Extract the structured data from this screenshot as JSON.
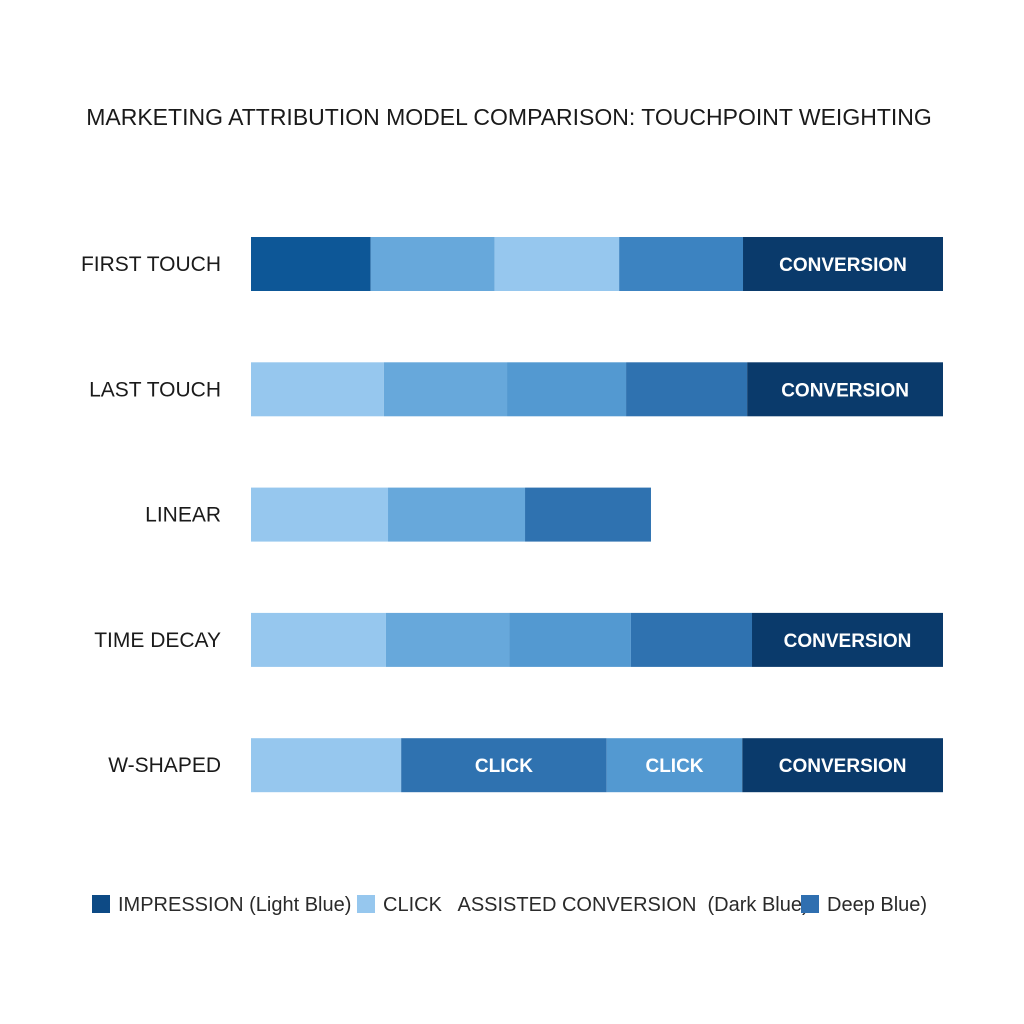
{
  "chart_data": {
    "type": "bar",
    "stacked": true,
    "orientation": "horizontal",
    "title": "MARKETING ATTRIBUTION MODEL COMPARISON: TOUCHPOINT WEIGHTING",
    "xlabel": "",
    "ylabel": "",
    "grid": false,
    "legend_position": "bottom",
    "categories": [
      "FIRST TOUCH",
      "LAST TOUCH",
      "LINEAR",
      "TIME DECAY",
      "W-SHAPED"
    ],
    "rows": [
      {
        "label": "FIRST TOUCH",
        "segments": [
          {
            "value": 17.3,
            "color": "#0d5797",
            "label": ""
          },
          {
            "value": 17.9,
            "color": "#67a8db",
            "label": ""
          },
          {
            "value": 18.0,
            "color": "#96c7ee",
            "label": ""
          },
          {
            "value": 17.9,
            "color": "#3c83c1",
            "label": ""
          },
          {
            "value": 28.9,
            "color": "#0a3a6b",
            "label": "CONVERSION"
          }
        ]
      },
      {
        "label": "LAST TOUCH",
        "segments": [
          {
            "value": 19.2,
            "color": "#96c7ee",
            "label": ""
          },
          {
            "value": 17.8,
            "color": "#67a8db",
            "label": ""
          },
          {
            "value": 17.2,
            "color": "#5399d1",
            "label": ""
          },
          {
            "value": 17.5,
            "color": "#2f72b0",
            "label": ""
          },
          {
            "value": 28.3,
            "color": "#0a3a6b",
            "label": "CONVERSION"
          }
        ]
      },
      {
        "label": "LINEAR",
        "segments": [
          {
            "value": 19.8,
            "color": "#96c7ee",
            "label": ""
          },
          {
            "value": 19.8,
            "color": "#67a8db",
            "label": ""
          },
          {
            "value": 18.2,
            "color": "#2f72b0",
            "label": ""
          }
        ]
      },
      {
        "label": "TIME DECAY",
        "segments": [
          {
            "value": 19.5,
            "color": "#96c7ee",
            "label": ""
          },
          {
            "value": 17.8,
            "color": "#67a8db",
            "label": ""
          },
          {
            "value": 17.6,
            "color": "#5399d1",
            "label": ""
          },
          {
            "value": 17.5,
            "color": "#2f72b0",
            "label": ""
          },
          {
            "value": 27.6,
            "color": "#0a3a6b",
            "label": "CONVERSION"
          }
        ]
      },
      {
        "label": "W-SHAPED",
        "segments": [
          {
            "value": 21.7,
            "color": "#96c7ee",
            "label": ""
          },
          {
            "value": 29.7,
            "color": "#2f72b0",
            "label": "CLICK"
          },
          {
            "value": 19.6,
            "color": "#5399d1",
            "label": "CLICK"
          },
          {
            "value": 29.0,
            "color": "#0a3a6b",
            "label": "CONVERSION"
          }
        ]
      }
    ],
    "legend": [
      {
        "swatch": "#0d4a85",
        "text": "IMPRESSION (Light Blue)"
      },
      {
        "swatch": "#96c7ee",
        "text": "CLICK   ASSISTED CONVERSION  (Dark Blue)"
      },
      {
        "swatch": "#2f6fb0",
        "text": "Deep Blue)"
      }
    ]
  }
}
